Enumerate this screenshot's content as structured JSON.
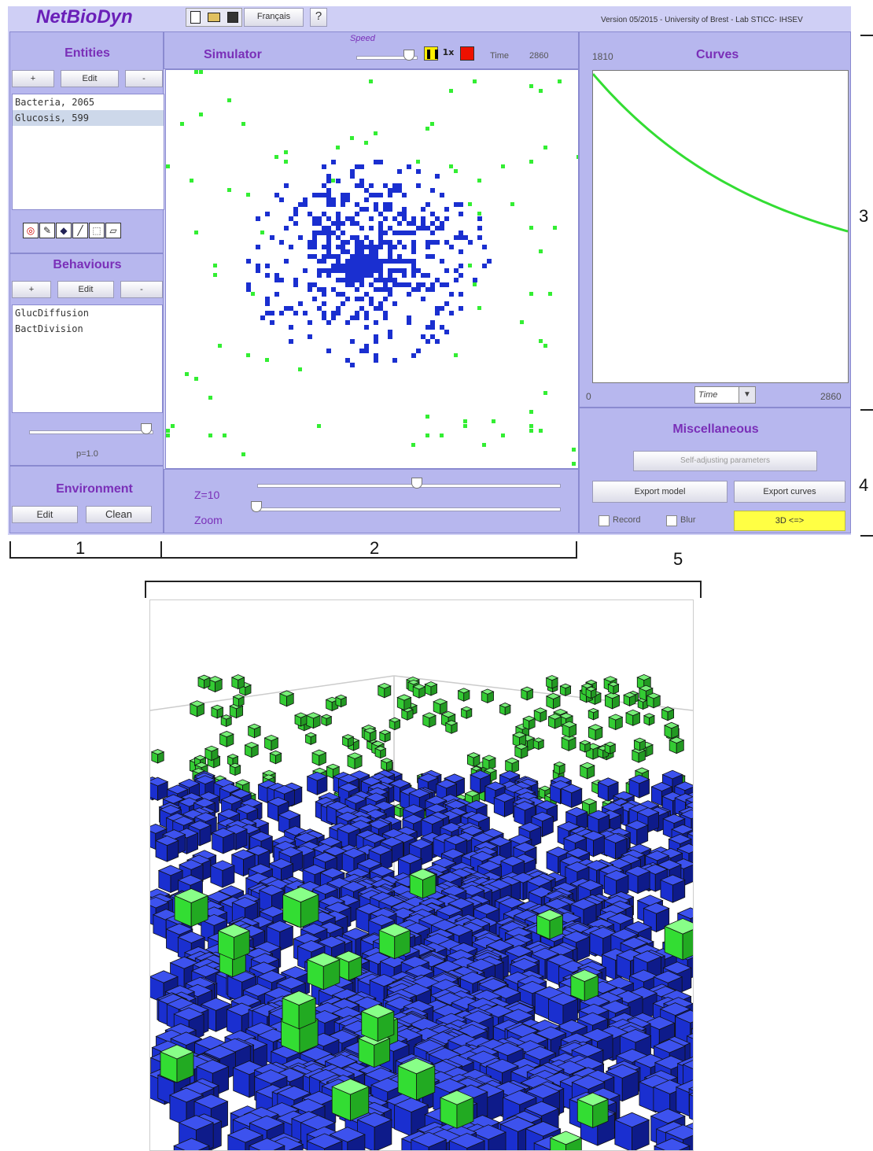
{
  "app": {
    "title": "NetBioDyn",
    "language_button": "Français",
    "help_button": "?",
    "version_text": "Version 05/2015 - University of Brest - Lab STICC- IHSEV"
  },
  "toolbar_icons": [
    "new-file-icon",
    "open-folder-icon",
    "save-disk-icon"
  ],
  "entities": {
    "title": "Entities",
    "add_label": "+",
    "edit_label": "Edit",
    "remove_label": "-",
    "items": [
      {
        "label": "Bacteria, 2065"
      },
      {
        "label": "Glucosis, 599"
      }
    ]
  },
  "tools": [
    "lifebuoy-icon",
    "pencil-icon",
    "bucket-icon",
    "line-icon",
    "select-rect-icon",
    "eraser-icon"
  ],
  "behaviours": {
    "title": "Behaviours",
    "add_label": "+",
    "edit_label": "Edit",
    "remove_label": "-",
    "items": [
      {
        "label": "GlucDiffusion"
      },
      {
        "label": "BactDivision"
      }
    ],
    "probability_label": "p=1.0",
    "probability_value": 1.0
  },
  "environment": {
    "title": "Environment",
    "edit_label": "Edit",
    "clean_label": "Clean"
  },
  "simulator": {
    "title": "Simulator",
    "speed_label": "Speed",
    "speed_value": 0.95,
    "time_label": "Time",
    "time_value": "2860",
    "z_label": "Z=10",
    "z_value": 0.55,
    "zoom_label": "Zoom",
    "zoom_value": 0.0,
    "colors": {
      "bacteria": "#1a2fd0",
      "glucose": "#33ee33"
    }
  },
  "curves": {
    "title": "Curves",
    "y_max_label": "1810",
    "x_min_label": "0",
    "x_max_label": "2860",
    "x_axis_select": "Time",
    "line_color": "#33dd33"
  },
  "misc": {
    "title": "Miscellaneous",
    "self_adjust_label": "Self-adjusting parameters",
    "export_model_label": "Export model",
    "export_curves_label": "Export curves",
    "record_label": "Record",
    "blur_label": "Blur",
    "three_d_label": "3D <=>",
    "three_d_color": "#ffff44"
  },
  "annotations": {
    "m1": "1",
    "m2": "2",
    "m3": "3",
    "m4": "4",
    "m5": "5"
  }
}
